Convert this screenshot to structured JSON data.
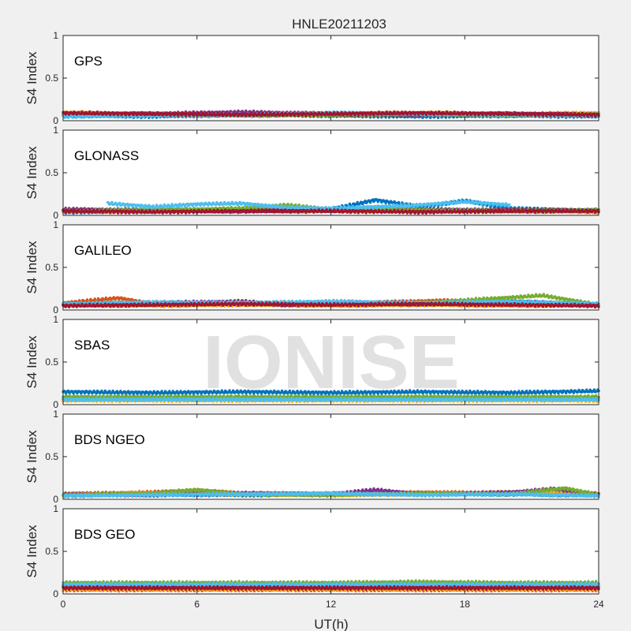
{
  "title": "HNLE20211203",
  "xlabel": "UT(h)",
  "ylabel": "S4 Index",
  "watermark": "IONISE",
  "colors": [
    "#0072bd",
    "#d95319",
    "#edb120",
    "#7e2f8e",
    "#77ac30",
    "#4dbeee",
    "#a2142f"
  ],
  "chart_data": [
    {
      "type": "scatter",
      "panel_label": "GPS",
      "xlim": [
        0,
        24
      ],
      "ylim": [
        0,
        1
      ],
      "xticks": [
        0,
        6,
        12,
        18,
        24
      ],
      "yticks": [
        0,
        0.5,
        1
      ],
      "grid": false,
      "series": [
        {
          "x": [
            0,
            4,
            8,
            12,
            16,
            20,
            24
          ],
          "y": [
            0.06,
            0.05,
            0.07,
            0.06,
            0.05,
            0.06,
            0.05
          ]
        },
        {
          "x": [
            0,
            4,
            8,
            12,
            16,
            20,
            24
          ],
          "y": [
            0.08,
            0.07,
            0.08,
            0.07,
            0.08,
            0.07,
            0.08
          ]
        },
        {
          "x": [
            0,
            4,
            8,
            12,
            16,
            20,
            24
          ],
          "y": [
            0.09,
            0.08,
            0.09,
            0.08,
            0.09,
            0.08,
            0.09
          ]
        },
        {
          "x": [
            0,
            4,
            8,
            12,
            16,
            20,
            24
          ],
          "y": [
            0.07,
            0.08,
            0.1,
            0.08,
            0.07,
            0.08,
            0.07
          ]
        },
        {
          "x": [
            0,
            4,
            8,
            12,
            16,
            20,
            24
          ],
          "y": [
            0.08,
            0.07,
            0.06,
            0.07,
            0.08,
            0.06,
            0.07
          ]
        },
        {
          "x": [
            0,
            4,
            8,
            12,
            16,
            20,
            24
          ],
          "y": [
            0.05,
            0.06,
            0.07,
            0.09,
            0.08,
            0.07,
            0.06
          ]
        },
        {
          "x": [
            0,
            4,
            8,
            12,
            16,
            20,
            24
          ],
          "y": [
            0.09,
            0.08,
            0.07,
            0.08,
            0.09,
            0.08,
            0.07
          ]
        }
      ]
    },
    {
      "type": "scatter",
      "panel_label": "GLONASS",
      "xlim": [
        0,
        24
      ],
      "ylim": [
        0,
        1
      ],
      "xticks": [
        0,
        6,
        12,
        18,
        24
      ],
      "yticks": [
        0,
        0.5,
        1
      ],
      "grid": false,
      "series": [
        {
          "x": [
            0,
            4,
            8,
            12,
            14,
            16,
            18,
            20,
            24
          ],
          "y": [
            0.04,
            0.05,
            0.06,
            0.07,
            0.18,
            0.1,
            0.17,
            0.08,
            0.05
          ]
        },
        {
          "x": [
            0,
            4,
            8,
            12,
            16,
            20,
            24
          ],
          "y": [
            0.06,
            0.05,
            0.07,
            0.06,
            0.05,
            0.06,
            0.05
          ]
        },
        {
          "x": [
            0,
            4,
            8,
            12,
            16,
            20,
            24
          ],
          "y": [
            0.05,
            0.06,
            0.05,
            0.05,
            0.06,
            0.05,
            0.04
          ]
        },
        {
          "x": [
            0,
            4,
            8,
            12,
            16,
            20,
            24
          ],
          "y": [
            0.07,
            0.06,
            0.05,
            0.06,
            0.07,
            0.06,
            0.06
          ]
        },
        {
          "x": [
            0,
            4,
            8,
            10,
            12,
            16,
            20,
            24
          ],
          "y": [
            0.05,
            0.06,
            0.08,
            0.12,
            0.07,
            0.06,
            0.05,
            0.06
          ]
        },
        {
          "x": [
            2,
            4,
            6,
            8,
            10,
            12,
            16,
            18,
            20
          ],
          "y": [
            0.14,
            0.1,
            0.13,
            0.14,
            0.09,
            0.08,
            0.12,
            0.16,
            0.12
          ]
        },
        {
          "x": [
            0,
            4,
            8,
            12,
            16,
            20,
            24
          ],
          "y": [
            0.05,
            0.04,
            0.05,
            0.05,
            0.04,
            0.05,
            0.05
          ]
        }
      ]
    },
    {
      "type": "scatter",
      "panel_label": "GALILEO",
      "xlim": [
        0,
        24
      ],
      "ylim": [
        0,
        1
      ],
      "xticks": [
        0,
        6,
        12,
        18,
        24
      ],
      "yticks": [
        0,
        0.5,
        1
      ],
      "grid": false,
      "series": [
        {
          "x": [
            0,
            4,
            8,
            12,
            16,
            20,
            24
          ],
          "y": [
            0.07,
            0.08,
            0.07,
            0.06,
            0.07,
            0.08,
            0.06
          ]
        },
        {
          "x": [
            0,
            2.5,
            4,
            8,
            12,
            17,
            20,
            24
          ],
          "y": [
            0.08,
            0.14,
            0.07,
            0.08,
            0.07,
            0.11,
            0.07,
            0.06
          ]
        },
        {
          "x": [
            0,
            4,
            8,
            12,
            16,
            20,
            24
          ],
          "y": [
            0.06,
            0.05,
            0.06,
            0.05,
            0.06,
            0.05,
            0.06
          ]
        },
        {
          "x": [
            0,
            4,
            8,
            10,
            12,
            16,
            20,
            24
          ],
          "y": [
            0.06,
            0.08,
            0.1,
            0.06,
            0.09,
            0.07,
            0.1,
            0.06
          ]
        },
        {
          "x": [
            0,
            4,
            8,
            12,
            16,
            21.5,
            24
          ],
          "y": [
            0.06,
            0.07,
            0.08,
            0.07,
            0.08,
            0.17,
            0.06
          ]
        },
        {
          "x": [
            0,
            4,
            8,
            12,
            16,
            20,
            24
          ],
          "y": [
            0.07,
            0.09,
            0.08,
            0.1,
            0.08,
            0.1,
            0.07
          ]
        },
        {
          "x": [
            0,
            4,
            8,
            12,
            16,
            20,
            24
          ],
          "y": [
            0.05,
            0.06,
            0.07,
            0.06,
            0.07,
            0.06,
            0.05
          ]
        }
      ]
    },
    {
      "type": "scatter",
      "panel_label": "SBAS",
      "xlim": [
        0,
        24
      ],
      "ylim": [
        0,
        1
      ],
      "xticks": [
        0,
        6,
        12,
        18,
        24
      ],
      "yticks": [
        0,
        0.5,
        1
      ],
      "grid": false,
      "series": [
        {
          "x": [
            0,
            4,
            8,
            12,
            16,
            20,
            24
          ],
          "y": [
            0.15,
            0.14,
            0.15,
            0.14,
            0.15,
            0.14,
            0.16
          ]
        },
        {
          "x": [
            0,
            4,
            8,
            12,
            16,
            20,
            24
          ],
          "y": [
            0.07,
            0.07,
            0.07,
            0.07,
            0.07,
            0.07,
            0.07
          ]
        },
        {
          "x": [
            0,
            4,
            8,
            12,
            16,
            20,
            24
          ],
          "y": [
            0.05,
            0.05,
            0.05,
            0.05,
            0.05,
            0.05,
            0.05
          ]
        },
        {
          "x": [
            0,
            4,
            8,
            12,
            16,
            20,
            24
          ],
          "y": [
            0.08,
            0.08,
            0.08,
            0.08,
            0.08,
            0.08,
            0.08
          ]
        },
        {
          "x": [
            0,
            4,
            8,
            12,
            16,
            20,
            24
          ],
          "y": [
            0.09,
            0.09,
            0.09,
            0.09,
            0.09,
            0.09,
            0.09
          ]
        },
        {
          "x": [
            0,
            4,
            8,
            12,
            16,
            20,
            24
          ],
          "y": [
            0.06,
            0.06,
            0.06,
            0.06,
            0.06,
            0.06,
            0.06
          ]
        }
      ]
    },
    {
      "type": "scatter",
      "panel_label": "BDS NGEO",
      "xlim": [
        0,
        24
      ],
      "ylim": [
        0,
        1
      ],
      "xticks": [
        0,
        6,
        12,
        18,
        24
      ],
      "yticks": [
        0,
        0.5,
        1
      ],
      "grid": false,
      "series": [
        {
          "x": [
            0,
            4,
            8,
            12,
            16,
            20,
            24
          ],
          "y": [
            0.05,
            0.06,
            0.05,
            0.06,
            0.07,
            0.06,
            0.05
          ]
        },
        {
          "x": [
            0,
            4,
            6,
            8,
            12,
            16,
            20,
            24
          ],
          "y": [
            0.06,
            0.08,
            0.1,
            0.07,
            0.06,
            0.08,
            0.07,
            0.06
          ]
        },
        {
          "x": [
            0,
            4,
            8,
            12,
            16,
            20,
            24
          ],
          "y": [
            0.05,
            0.07,
            0.06,
            0.05,
            0.06,
            0.08,
            0.05
          ]
        },
        {
          "x": [
            0,
            4,
            8,
            12,
            14,
            16,
            20,
            22,
            24
          ],
          "y": [
            0.06,
            0.05,
            0.07,
            0.06,
            0.11,
            0.06,
            0.08,
            0.12,
            0.06
          ]
        },
        {
          "x": [
            0,
            4,
            6,
            8,
            12,
            16,
            20,
            22.5,
            24
          ],
          "y": [
            0.05,
            0.07,
            0.11,
            0.06,
            0.05,
            0.07,
            0.06,
            0.13,
            0.05
          ]
        },
        {
          "x": [
            0,
            4,
            8,
            12,
            16,
            20,
            24
          ],
          "y": [
            0.04,
            0.05,
            0.06,
            0.07,
            0.05,
            0.06,
            0.04
          ]
        }
      ]
    },
    {
      "type": "scatter",
      "panel_label": "BDS GEO",
      "xlim": [
        0,
        24
      ],
      "ylim": [
        0,
        1
      ],
      "xticks": [
        0,
        6,
        12,
        18,
        24
      ],
      "yticks": [
        0,
        0.5,
        1
      ],
      "grid": false,
      "series": [
        {
          "x": [
            0,
            4,
            8,
            12,
            16,
            20,
            24
          ],
          "y": [
            0.1,
            0.1,
            0.1,
            0.1,
            0.11,
            0.1,
            0.1
          ]
        },
        {
          "x": [
            0,
            4,
            8,
            12,
            16,
            20,
            24
          ],
          "y": [
            0.05,
            0.05,
            0.05,
            0.05,
            0.05,
            0.05,
            0.05
          ]
        },
        {
          "x": [
            0,
            4,
            8,
            12,
            16,
            20,
            24
          ],
          "y": [
            0.06,
            0.06,
            0.06,
            0.06,
            0.06,
            0.06,
            0.06
          ]
        },
        {
          "x": [
            0,
            4,
            8,
            12,
            16,
            20,
            24
          ],
          "y": [
            0.08,
            0.08,
            0.08,
            0.08,
            0.08,
            0.08,
            0.08
          ]
        },
        {
          "x": [
            0,
            4,
            8,
            12,
            16,
            20,
            24
          ],
          "y": [
            0.13,
            0.13,
            0.13,
            0.13,
            0.14,
            0.13,
            0.13
          ]
        },
        {
          "x": [
            0,
            4,
            8,
            12,
            16,
            20,
            24
          ],
          "y": [
            0.11,
            0.11,
            0.11,
            0.11,
            0.11,
            0.11,
            0.11
          ]
        },
        {
          "x": [
            0,
            4,
            8,
            12,
            16,
            20,
            24
          ],
          "y": [
            0.07,
            0.07,
            0.07,
            0.07,
            0.07,
            0.07,
            0.07
          ]
        }
      ]
    }
  ]
}
